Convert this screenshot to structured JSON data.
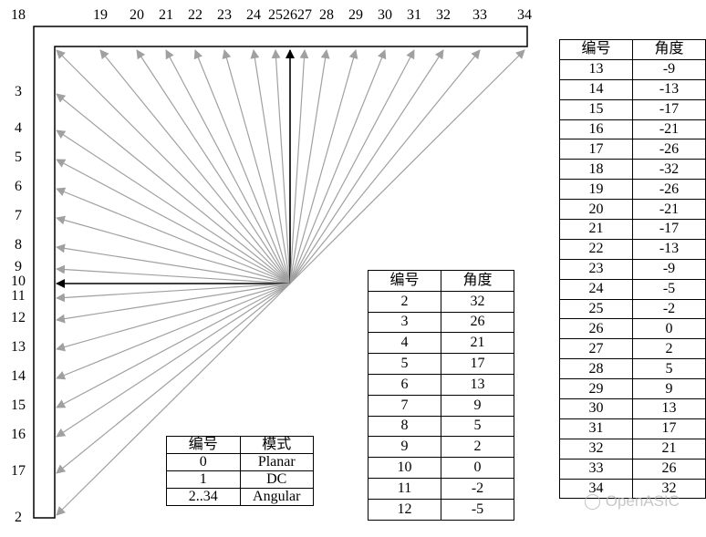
{
  "modes": [
    {
      "id": 2,
      "angle": 32
    },
    {
      "id": 3,
      "angle": 26
    },
    {
      "id": 4,
      "angle": 21
    },
    {
      "id": 5,
      "angle": 17
    },
    {
      "id": 6,
      "angle": 13
    },
    {
      "id": 7,
      "angle": 9
    },
    {
      "id": 8,
      "angle": 5
    },
    {
      "id": 9,
      "angle": 2
    },
    {
      "id": 10,
      "angle": 0
    },
    {
      "id": 11,
      "angle": -2
    },
    {
      "id": 12,
      "angle": -5
    },
    {
      "id": 13,
      "angle": -9
    },
    {
      "id": 14,
      "angle": -13
    },
    {
      "id": 15,
      "angle": -17
    },
    {
      "id": 16,
      "angle": -21
    },
    {
      "id": 17,
      "angle": -26
    },
    {
      "id": 18,
      "angle": -32
    },
    {
      "id": 19,
      "angle": -26
    },
    {
      "id": 20,
      "angle": -21
    },
    {
      "id": 21,
      "angle": -17
    },
    {
      "id": 22,
      "angle": -13
    },
    {
      "id": 23,
      "angle": -9
    },
    {
      "id": 24,
      "angle": -5
    },
    {
      "id": 25,
      "angle": -2
    },
    {
      "id": 26,
      "angle": 0
    },
    {
      "id": 27,
      "angle": 2
    },
    {
      "id": 28,
      "angle": 5
    },
    {
      "id": 29,
      "angle": 9
    },
    {
      "id": 30,
      "angle": 13
    },
    {
      "id": 31,
      "angle": 17
    },
    {
      "id": 32,
      "angle": 21
    },
    {
      "id": 33,
      "angle": 26
    },
    {
      "id": 34,
      "angle": 32
    }
  ],
  "highlighted_modes": [
    10,
    26
  ],
  "colors": {
    "arrow": "#a0a0a0",
    "highlight": "#000000"
  },
  "mode_table": {
    "headers": [
      "编号",
      "模式"
    ],
    "rows": [
      [
        "0",
        "Planar"
      ],
      [
        "1",
        "DC"
      ],
      [
        "2..34",
        "Angular"
      ]
    ]
  },
  "angle_table_headers": [
    "编号",
    "角度"
  ],
  "watermark": "OpenASIC"
}
